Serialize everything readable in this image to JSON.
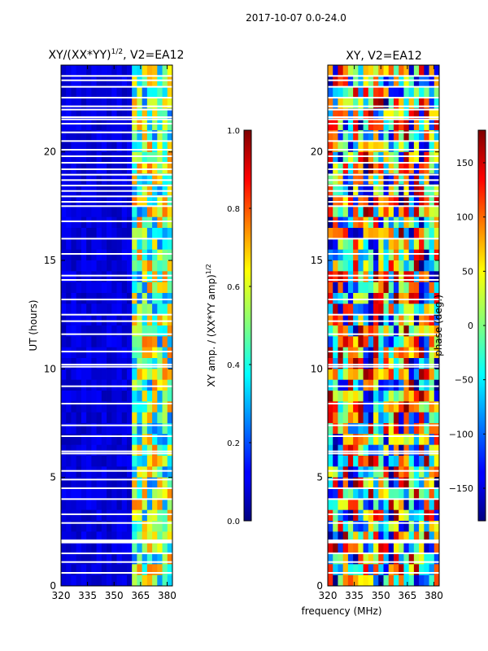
{
  "figure": {
    "suptitle": "2017-10-07 0.0-24.0",
    "xlabel_shared": "frequency (MHz)"
  },
  "chart_data": [
    {
      "type": "heatmap",
      "title": "XY/(XX*YY)",
      "title_superscript": "1/2",
      "title_suffix": ", V2=EA12",
      "ylabel": "UT (hours)",
      "xlim": [
        320,
        383
      ],
      "ylim": [
        0,
        24
      ],
      "xticks": [
        320,
        335,
        350,
        365,
        380
      ],
      "yticks": [
        0,
        5,
        10,
        15,
        20
      ],
      "colorbar": {
        "label": "XY amp. / (XX*YY amp)",
        "label_superscript": "1/2",
        "range": [
          0.0,
          1.0
        ],
        "ticks": [
          0.0,
          0.2,
          0.4,
          0.6,
          0.8,
          1.0
        ],
        "tick_labels": [
          "0.0",
          "0.2",
          "0.4",
          "0.6",
          "0.8",
          "1.0"
        ],
        "colormap": "jet"
      },
      "description_values": {
        "low_freq_band_mhz": [
          320,
          360
        ],
        "low_freq_typical_value": 0.05,
        "high_freq_band_mhz": [
          360,
          383
        ],
        "high_freq_typical_value": 0.5
      },
      "flagged_hours": [
        0.6,
        1.1,
        1.5,
        2.0,
        2.05,
        2.1,
        2.9,
        3.3,
        4.0,
        4.5,
        4.9,
        5.3,
        6.1,
        6.2,
        6.9,
        7.4,
        8.4,
        9.2,
        10.1,
        10.2,
        10.8,
        11.6,
        12.2,
        12.5,
        13.2,
        14.1,
        14.3,
        15.3,
        16.0,
        16.8,
        17.5,
        17.7,
        17.95,
        18.2,
        18.45,
        18.7,
        18.95,
        19.2,
        19.5,
        19.8,
        20.1,
        20.5,
        20.9,
        21.3,
        21.5,
        21.6,
        21.95,
        22.1,
        22.5,
        23.0,
        23.3,
        23.5
      ]
    },
    {
      "type": "heatmap",
      "title": "XY, V2=EA12",
      "xlim": [
        320,
        383
      ],
      "ylim": [
        0,
        24
      ],
      "xticks": [
        320,
        335,
        350,
        365,
        380
      ],
      "yticks": [
        0,
        5,
        10,
        15,
        20
      ],
      "colorbar": {
        "label": "phase (deg.)",
        "range": [
          -180,
          180
        ],
        "ticks": [
          -150,
          -100,
          -50,
          0,
          50,
          100,
          150
        ],
        "tick_labels": [
          "−150",
          "−100",
          "−50",
          "0",
          "50",
          "100",
          "150"
        ],
        "colormap": "jet"
      },
      "flagged_hours": [
        0.6,
        1.1,
        1.5,
        2.0,
        2.05,
        2.1,
        2.9,
        3.3,
        4.0,
        4.5,
        4.9,
        5.3,
        6.1,
        6.2,
        6.9,
        7.4,
        8.4,
        9.2,
        10.1,
        10.2,
        10.8,
        11.6,
        12.2,
        12.5,
        13.2,
        14.1,
        14.3,
        15.3,
        16.0,
        16.8,
        17.5,
        17.7,
        17.95,
        18.2,
        18.45,
        18.7,
        18.95,
        19.2,
        19.5,
        19.8,
        20.1,
        20.5,
        20.9,
        21.3,
        21.5,
        21.6,
        21.95,
        22.1,
        22.5,
        23.0,
        23.3,
        23.5
      ]
    }
  ]
}
